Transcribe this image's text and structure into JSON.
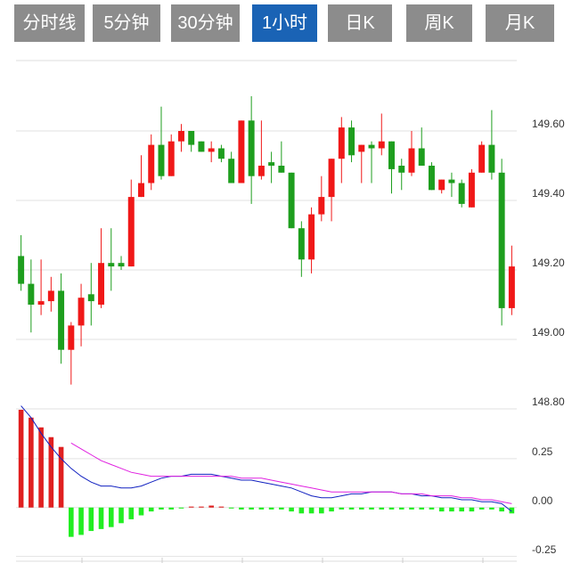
{
  "tabs": {
    "items": [
      "分时线",
      "5分钟",
      "30分钟",
      "1小时",
      "日K",
      "周K",
      "月K"
    ],
    "active": 3
  },
  "chart_data": [
    {
      "type": "candlestick",
      "up_color": "#f01818",
      "down_color": "#1e9e1e",
      "open": [
        149.24,
        149.16,
        149.1,
        149.11,
        149.14,
        148.97,
        149.04,
        149.13,
        149.1,
        149.22,
        149.22,
        149.21,
        149.41,
        149.45,
        149.56,
        149.47,
        149.57,
        149.6,
        149.57,
        149.54,
        149.55,
        149.52,
        149.45,
        149.63,
        149.47,
        149.51,
        149.5,
        149.48,
        149.32,
        149.23,
        149.36,
        149.41,
        149.52,
        149.61,
        149.54,
        149.56,
        149.55,
        149.57,
        149.5,
        149.48,
        149.55,
        149.5,
        149.43,
        149.46,
        149.45,
        149.38,
        149.48,
        149.56,
        149.48,
        149.09
      ],
      "high": [
        149.3,
        149.23,
        149.23,
        149.18,
        149.19,
        149.05,
        149.16,
        149.22,
        149.32,
        149.32,
        149.24,
        149.46,
        149.53,
        149.59,
        149.67,
        149.59,
        149.62,
        149.6,
        149.57,
        149.57,
        149.56,
        149.54,
        149.63,
        149.7,
        149.63,
        149.54,
        149.57,
        149.48,
        149.34,
        149.38,
        149.47,
        149.52,
        149.64,
        149.63,
        149.56,
        149.57,
        149.65,
        149.57,
        149.52,
        149.6,
        149.61,
        149.51,
        149.46,
        149.48,
        149.46,
        149.49,
        149.57,
        149.66,
        149.52,
        149.27
      ],
      "low": [
        149.14,
        149.02,
        149.07,
        149.08,
        148.93,
        148.87,
        148.98,
        149.04,
        149.09,
        149.14,
        149.2,
        149.21,
        149.41,
        149.43,
        149.46,
        149.47,
        149.54,
        149.54,
        149.54,
        149.51,
        149.51,
        149.45,
        149.45,
        149.39,
        149.46,
        149.45,
        149.48,
        149.32,
        149.18,
        149.19,
        149.34,
        149.34,
        149.45,
        149.51,
        149.45,
        149.45,
        149.53,
        149.42,
        149.43,
        149.47,
        149.5,
        149.43,
        149.42,
        149.41,
        149.38,
        149.38,
        149.48,
        149.46,
        149.04,
        149.07
      ],
      "close": [
        149.16,
        149.1,
        149.11,
        149.14,
        148.97,
        149.04,
        149.12,
        149.11,
        149.22,
        149.21,
        149.21,
        149.41,
        149.45,
        149.56,
        149.47,
        149.57,
        149.6,
        149.56,
        149.54,
        149.55,
        149.52,
        149.45,
        149.63,
        149.47,
        149.5,
        149.5,
        149.48,
        149.32,
        149.23,
        149.36,
        149.41,
        149.52,
        149.61,
        149.53,
        149.56,
        149.55,
        149.57,
        149.49,
        149.48,
        149.55,
        149.5,
        149.43,
        149.46,
        149.45,
        149.39,
        149.48,
        149.56,
        149.48,
        149.09,
        149.21
      ],
      "ylim": [
        148.8,
        149.8
      ],
      "yticks": [
        {
          "value": 148.8,
          "label": "148.80"
        },
        {
          "value": 149.0,
          "label": "149.00"
        },
        {
          "value": 149.2,
          "label": "149.20"
        },
        {
          "value": 149.4,
          "label": "149.40"
        },
        {
          "value": 149.6,
          "label": "149.60"
        }
      ],
      "grid": true
    },
    {
      "type": "macd",
      "up_color": "#e02020",
      "down_color": "#22ee22",
      "values": [
        0.5,
        0.46,
        0.41,
        0.36,
        0.31,
        -0.15,
        -0.14,
        -0.12,
        -0.11,
        -0.1,
        -0.08,
        -0.06,
        -0.04,
        -0.02,
        -0.01,
        -0.01,
        -0.005,
        0.005,
        0.005,
        0.01,
        0.005,
        -0.005,
        -0.01,
        -0.01,
        -0.01,
        -0.01,
        -0.01,
        -0.02,
        -0.03,
        -0.03,
        -0.03,
        -0.02,
        -0.01,
        -0.01,
        -0.01,
        -0.01,
        -0.01,
        -0.01,
        -0.01,
        -0.01,
        -0.01,
        -0.01,
        -0.02,
        -0.02,
        -0.02,
        -0.02,
        -0.01,
        -0.01,
        -0.02,
        -0.03
      ],
      "series": [
        {
          "color": "#1020c0",
          "values": [
            0.52,
            0.46,
            0.38,
            0.31,
            0.25,
            0.2,
            0.16,
            0.13,
            0.11,
            0.11,
            0.1,
            0.1,
            0.11,
            0.13,
            0.15,
            0.16,
            0.16,
            0.17,
            0.17,
            0.17,
            0.16,
            0.15,
            0.14,
            0.14,
            0.13,
            0.12,
            0.11,
            0.1,
            0.08,
            0.06,
            0.05,
            0.05,
            0.06,
            0.07,
            0.07,
            0.08,
            0.08,
            0.08,
            0.07,
            0.07,
            0.06,
            0.06,
            0.05,
            0.05,
            0.04,
            0.04,
            0.03,
            0.03,
            0.02,
            -0.02
          ]
        },
        {
          "color": "#e020e0",
          "values": [
            null,
            null,
            null,
            null,
            null,
            0.33,
            0.3,
            0.27,
            0.24,
            0.22,
            0.2,
            0.18,
            0.17,
            0.16,
            0.16,
            0.16,
            0.16,
            0.16,
            0.16,
            0.16,
            0.16,
            0.16,
            0.15,
            0.15,
            0.15,
            0.14,
            0.13,
            0.12,
            0.11,
            0.1,
            0.09,
            0.08,
            0.08,
            0.08,
            0.08,
            0.08,
            0.08,
            0.08,
            0.07,
            0.07,
            0.07,
            0.06,
            0.06,
            0.06,
            0.05,
            0.05,
            0.04,
            0.04,
            0.03,
            0.02
          ]
        }
      ],
      "ylim": [
        -0.27,
        0.5
      ],
      "yticks": [
        {
          "value": -0.25,
          "label": "-0.25"
        },
        {
          "value": 0,
          "label": "0.00"
        },
        {
          "value": 0.25,
          "label": "0.25"
        }
      ],
      "grid": true
    }
  ]
}
